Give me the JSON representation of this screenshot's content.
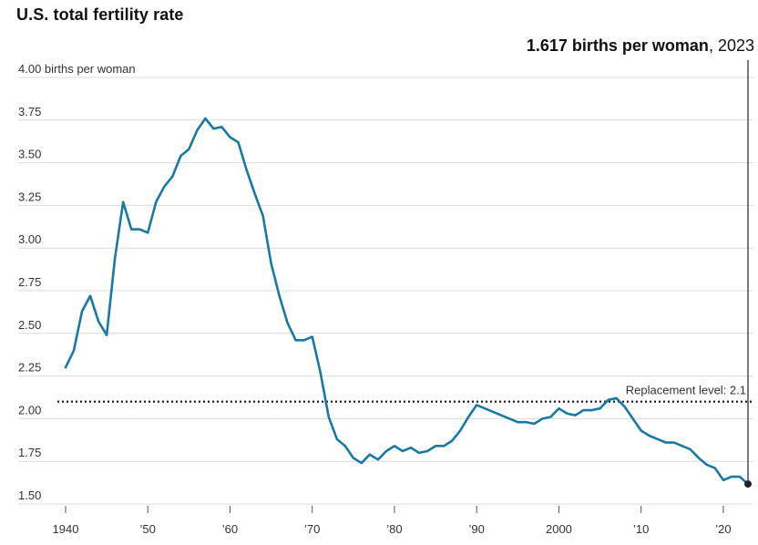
{
  "title": "U.S. total fertility rate",
  "annotation": {
    "value": "1.617 births per woman",
    "separator": ", ",
    "year": "2023"
  },
  "colors": {
    "line": "#1a78a6",
    "grid": "#dcdcdc",
    "reference": "#111111",
    "marker": "#222222"
  },
  "chart_data": {
    "type": "line",
    "title": "U.S. total fertility rate",
    "ylabel": "births per woman",
    "ylim": [
      1.5,
      4.0
    ],
    "xlim": [
      1940,
      2023
    ],
    "grid": true,
    "y_ticks": [
      {
        "value": 4.0,
        "label": "4.00 births per woman"
      },
      {
        "value": 3.75,
        "label": "3.75"
      },
      {
        "value": 3.5,
        "label": "3.50"
      },
      {
        "value": 3.25,
        "label": "3.25"
      },
      {
        "value": 3.0,
        "label": "3.00"
      },
      {
        "value": 2.75,
        "label": "2.75"
      },
      {
        "value": 2.5,
        "label": "2.50"
      },
      {
        "value": 2.25,
        "label": "2.25"
      },
      {
        "value": 2.0,
        "label": "2.00"
      },
      {
        "value": 1.75,
        "label": "1.75"
      },
      {
        "value": 1.5,
        "label": "1.50"
      }
    ],
    "x_ticks": [
      {
        "value": 1940,
        "label": "1940"
      },
      {
        "value": 1950,
        "label": "’50"
      },
      {
        "value": 1960,
        "label": "’60"
      },
      {
        "value": 1970,
        "label": "’70"
      },
      {
        "value": 1980,
        "label": "’80"
      },
      {
        "value": 1990,
        "label": "’90"
      },
      {
        "value": 2000,
        "label": "2000"
      },
      {
        "value": 2010,
        "label": "’10"
      },
      {
        "value": 2020,
        "label": "’20"
      }
    ],
    "reference_line": {
      "value": 2.1,
      "label": "Replacement level: 2.1"
    },
    "highlight": {
      "x": 2023,
      "y": 1.617
    },
    "x": [
      1940,
      1941,
      1942,
      1943,
      1944,
      1945,
      1946,
      1947,
      1948,
      1949,
      1950,
      1951,
      1952,
      1953,
      1954,
      1955,
      1956,
      1957,
      1958,
      1959,
      1960,
      1961,
      1962,
      1963,
      1964,
      1965,
      1966,
      1967,
      1968,
      1969,
      1970,
      1971,
      1972,
      1973,
      1974,
      1975,
      1976,
      1977,
      1978,
      1979,
      1980,
      1981,
      1982,
      1983,
      1984,
      1985,
      1986,
      1987,
      1988,
      1989,
      1990,
      1991,
      1992,
      1993,
      1994,
      1995,
      1996,
      1997,
      1998,
      1999,
      2000,
      2001,
      2002,
      2003,
      2004,
      2005,
      2006,
      2007,
      2008,
      2009,
      2010,
      2011,
      2012,
      2013,
      2014,
      2015,
      2016,
      2017,
      2018,
      2019,
      2020,
      2021,
      2022,
      2023
    ],
    "y": [
      2.3,
      2.4,
      2.63,
      2.72,
      2.57,
      2.49,
      2.94,
      3.27,
      3.11,
      3.11,
      3.09,
      3.27,
      3.36,
      3.42,
      3.54,
      3.58,
      3.69,
      3.76,
      3.7,
      3.71,
      3.65,
      3.62,
      3.46,
      3.32,
      3.19,
      2.91,
      2.72,
      2.56,
      2.46,
      2.46,
      2.48,
      2.27,
      2.01,
      1.88,
      1.84,
      1.77,
      1.74,
      1.79,
      1.76,
      1.81,
      1.84,
      1.81,
      1.83,
      1.8,
      1.81,
      1.84,
      1.84,
      1.87,
      1.93,
      2.01,
      2.08,
      2.06,
      2.04,
      2.02,
      2.0,
      1.98,
      1.98,
      1.97,
      2.0,
      2.01,
      2.06,
      2.03,
      2.02,
      2.05,
      2.05,
      2.06,
      2.11,
      2.12,
      2.07,
      2.0,
      1.93,
      1.9,
      1.88,
      1.86,
      1.86,
      1.84,
      1.82,
      1.77,
      1.73,
      1.71,
      1.64,
      1.66,
      1.66,
      1.617
    ]
  }
}
